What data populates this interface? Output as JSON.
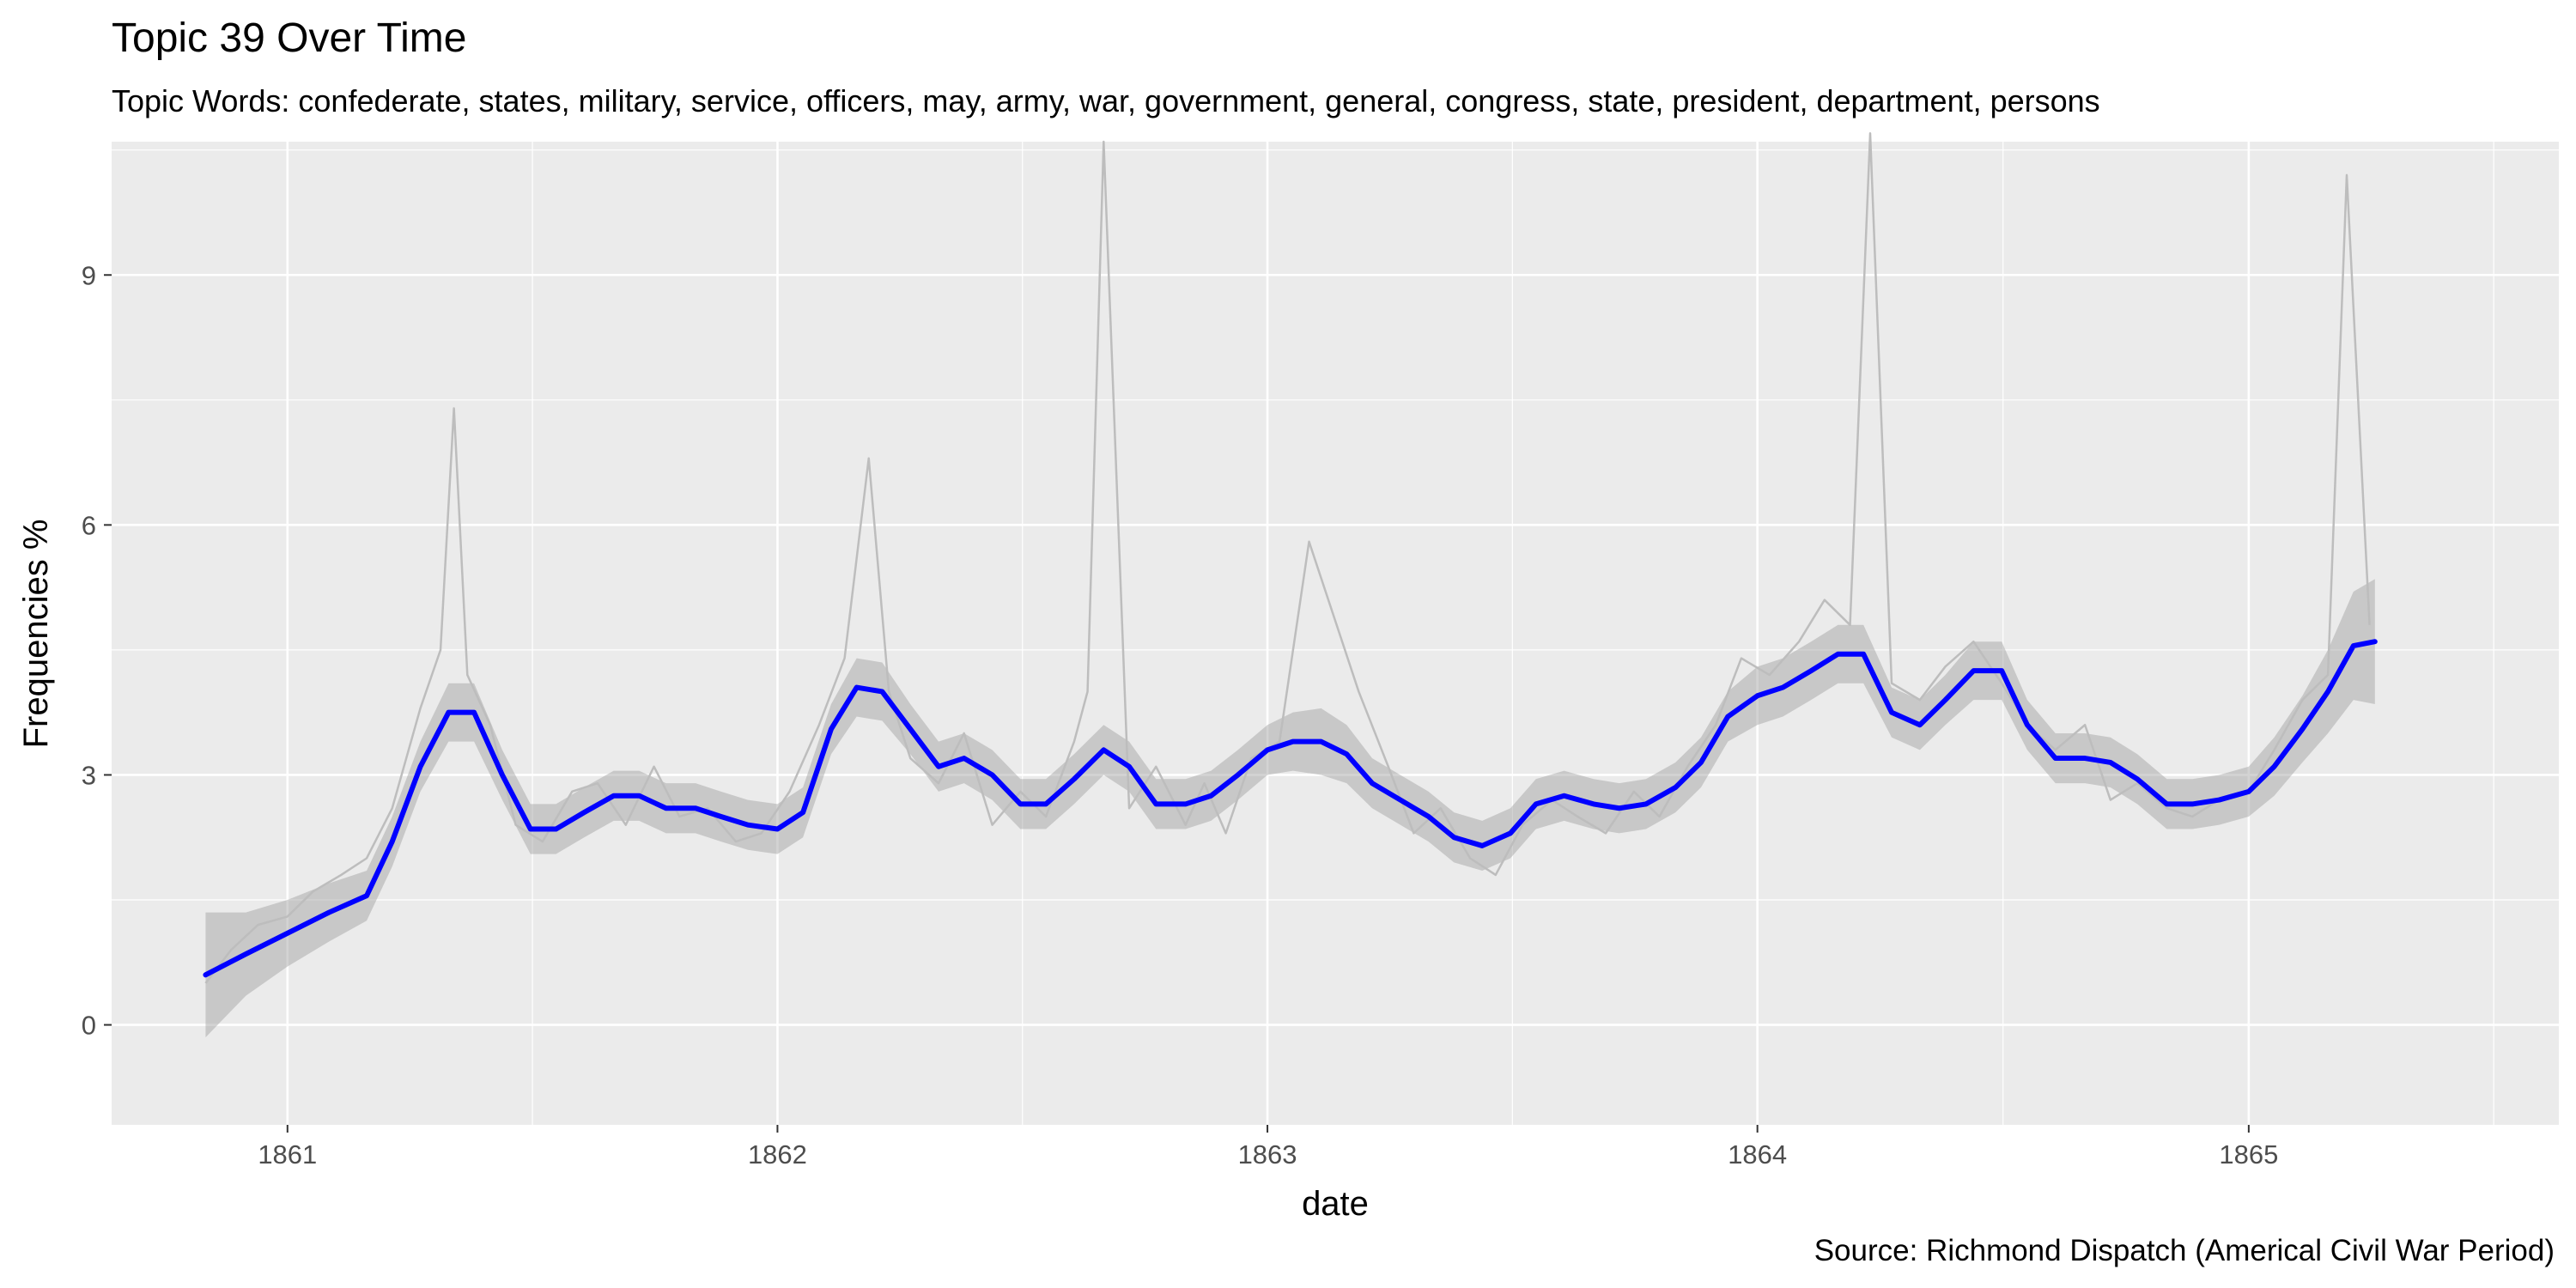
{
  "chart_data": {
    "type": "line",
    "title": "Topic 39 Over Time",
    "subtitle": "Topic Words: confederate, states, military, service, officers, may, army, war, government, general, congress, state, president, department, persons",
    "xlabel": "date",
    "ylabel": "Frequencies %",
    "caption": "Source: Richmond Dispatch (Americal Civil War Period)",
    "xlim": [
      "1860-08-23",
      "1865-08-20"
    ],
    "ylim": [
      -1.2,
      10.6
    ],
    "x_ticks": [
      "1861",
      "1862",
      "1863",
      "1864",
      "1865"
    ],
    "x_tick_dates": [
      "1861-01-01",
      "1862-01-01",
      "1863-01-01",
      "1864-01-01",
      "1865-01-01"
    ],
    "y_ticks": [
      0,
      3,
      6,
      9
    ],
    "grid": true,
    "series": [
      {
        "color": "#bdbdbd",
        "style": "raw daily values",
        "x": [
          "1860-11-01",
          "1860-11-20",
          "1860-12-10",
          "1861-01-01",
          "1861-01-20",
          "1861-02-10",
          "1861-03-01",
          "1861-03-20",
          "1861-04-10",
          "1861-04-25",
          "1861-05-05",
          "1861-05-15",
          "1861-06-01",
          "1861-06-20",
          "1861-07-10",
          "1861-08-01",
          "1861-08-20",
          "1861-09-10",
          "1861-10-01",
          "1861-10-20",
          "1861-11-10",
          "1861-12-01",
          "1861-12-20",
          "1862-01-10",
          "1862-02-01",
          "1862-02-20",
          "1862-03-10",
          "1862-03-25",
          "1862-04-10",
          "1862-05-01",
          "1862-05-20",
          "1862-06-10",
          "1862-07-01",
          "1862-07-20",
          "1862-08-10",
          "1862-08-20",
          "1862-09-01",
          "1862-09-20",
          "1862-10-10",
          "1862-11-01",
          "1862-11-15",
          "1862-12-01",
          "1862-12-20",
          "1863-01-10",
          "1863-02-01",
          "1863-03-10",
          "1863-04-01",
          "1863-04-20",
          "1863-05-10",
          "1863-06-01",
          "1863-06-20",
          "1863-07-10",
          "1863-08-01",
          "1863-08-20",
          "1863-09-10",
          "1863-10-01",
          "1863-10-20",
          "1863-11-10",
          "1863-12-01",
          "1863-12-20",
          "1864-01-10",
          "1864-02-01",
          "1864-02-20",
          "1864-03-10",
          "1864-03-25",
          "1864-04-10",
          "1864-05-01",
          "1864-05-20",
          "1864-06-10",
          "1864-07-01",
          "1864-07-20",
          "1864-08-10",
          "1864-09-01",
          "1864-09-20",
          "1864-10-10",
          "1864-11-01",
          "1864-11-20",
          "1864-12-10",
          "1865-01-01",
          "1865-01-20",
          "1865-02-10",
          "1865-03-01",
          "1865-03-15",
          "1865-04-01"
        ],
        "values": [
          0.5,
          0.9,
          1.2,
          1.3,
          1.6,
          1.8,
          2.0,
          2.6,
          3.8,
          4.5,
          7.4,
          4.2,
          3.6,
          2.4,
          2.2,
          2.8,
          2.9,
          2.4,
          3.1,
          2.5,
          2.6,
          2.2,
          2.3,
          2.8,
          3.6,
          4.4,
          6.8,
          4.0,
          3.2,
          2.9,
          3.5,
          2.4,
          2.8,
          2.5,
          3.4,
          4.0,
          10.6,
          2.6,
          3.1,
          2.4,
          2.9,
          2.3,
          3.2,
          3.4,
          5.8,
          4.0,
          3.1,
          2.3,
          2.6,
          2.0,
          1.8,
          2.4,
          2.7,
          2.5,
          2.3,
          2.8,
          2.5,
          3.1,
          3.6,
          4.4,
          4.2,
          4.6,
          5.1,
          4.8,
          10.7,
          4.1,
          3.9,
          4.3,
          4.6,
          4.1,
          3.6,
          3.3,
          3.6,
          2.7,
          2.9,
          2.6,
          2.5,
          2.7,
          2.8,
          3.3,
          3.9,
          4.2,
          10.2,
          4.8
        ]
      },
      {
        "color": "#0000ff",
        "style": "smoothed trend",
        "x": [
          "1860-11-01",
          "1860-12-01",
          "1861-01-01",
          "1861-02-01",
          "1861-03-01",
          "1861-03-20",
          "1861-04-10",
          "1861-05-01",
          "1861-05-20",
          "1861-06-10",
          "1861-07-01",
          "1861-07-20",
          "1861-08-10",
          "1861-09-01",
          "1861-09-20",
          "1861-10-10",
          "1861-11-01",
          "1861-11-20",
          "1861-12-10",
          "1862-01-01",
          "1862-01-20",
          "1862-02-10",
          "1862-03-01",
          "1862-03-20",
          "1862-04-10",
          "1862-05-01",
          "1862-05-20",
          "1862-06-10",
          "1862-07-01",
          "1862-07-20",
          "1862-08-10",
          "1862-09-01",
          "1862-09-20",
          "1862-10-10",
          "1862-11-01",
          "1862-11-20",
          "1862-12-10",
          "1863-01-01",
          "1863-01-20",
          "1863-02-10",
          "1863-03-01",
          "1863-03-20",
          "1863-04-10",
          "1863-05-01",
          "1863-05-20",
          "1863-06-10",
          "1863-07-01",
          "1863-07-20",
          "1863-08-10",
          "1863-09-01",
          "1863-09-20",
          "1863-10-10",
          "1863-11-01",
          "1863-11-20",
          "1863-12-10",
          "1864-01-01",
          "1864-01-20",
          "1864-02-10",
          "1864-03-01",
          "1864-03-20",
          "1864-04-10",
          "1864-05-01",
          "1864-05-20",
          "1864-06-10",
          "1864-07-01",
          "1864-07-20",
          "1864-08-10",
          "1864-09-01",
          "1864-09-20",
          "1864-10-10",
          "1864-11-01",
          "1864-11-20",
          "1864-12-10",
          "1865-01-01",
          "1865-01-20",
          "1865-02-10",
          "1865-03-01",
          "1865-03-20",
          "1865-04-05"
        ],
        "values": [
          0.6,
          0.85,
          1.1,
          1.35,
          1.55,
          2.2,
          3.1,
          3.75,
          3.75,
          3.0,
          2.35,
          2.35,
          2.55,
          2.75,
          2.75,
          2.6,
          2.6,
          2.5,
          2.4,
          2.35,
          2.55,
          3.55,
          4.05,
          4.0,
          3.55,
          3.1,
          3.2,
          3.0,
          2.65,
          2.65,
          2.95,
          3.3,
          3.1,
          2.65,
          2.65,
          2.75,
          3.0,
          3.3,
          3.4,
          3.4,
          3.25,
          2.9,
          2.7,
          2.5,
          2.25,
          2.15,
          2.3,
          2.65,
          2.75,
          2.65,
          2.6,
          2.65,
          2.85,
          3.15,
          3.7,
          3.95,
          4.05,
          4.25,
          4.45,
          4.45,
          3.75,
          3.6,
          3.9,
          4.25,
          4.25,
          3.6,
          3.2,
          3.2,
          3.15,
          2.95,
          2.65,
          2.65,
          2.7,
          2.8,
          3.1,
          3.55,
          4.0,
          4.55,
          4.6
        ]
      }
    ],
    "confidence_band": {
      "color": "#9e9e9e",
      "half_width": [
        0.75,
        0.5,
        0.4,
        0.35,
        0.3,
        0.3,
        0.3,
        0.35,
        0.35,
        0.3,
        0.3,
        0.3,
        0.3,
        0.3,
        0.3,
        0.3,
        0.3,
        0.3,
        0.3,
        0.3,
        0.3,
        0.3,
        0.35,
        0.35,
        0.3,
        0.3,
        0.3,
        0.3,
        0.3,
        0.3,
        0.3,
        0.3,
        0.3,
        0.3,
        0.3,
        0.3,
        0.3,
        0.3,
        0.35,
        0.4,
        0.35,
        0.3,
        0.3,
        0.3,
        0.3,
        0.3,
        0.3,
        0.3,
        0.3,
        0.3,
        0.3,
        0.3,
        0.3,
        0.3,
        0.3,
        0.35,
        0.35,
        0.35,
        0.35,
        0.35,
        0.3,
        0.3,
        0.3,
        0.35,
        0.35,
        0.3,
        0.3,
        0.3,
        0.3,
        0.3,
        0.3,
        0.3,
        0.3,
        0.3,
        0.35,
        0.4,
        0.5,
        0.65,
        0.75
      ]
    }
  }
}
